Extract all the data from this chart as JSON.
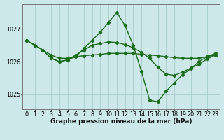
{
  "xlabel": "Graphe pression niveau de la mer (hPa)",
  "background_color": "#cce8e8",
  "grid_color": "#aacccc",
  "line_color": "#1a6b1a",
  "hours": [
    0,
    1,
    2,
    3,
    4,
    5,
    6,
    7,
    8,
    9,
    10,
    11,
    12,
    13,
    14,
    15,
    16,
    17,
    18,
    19,
    20,
    21,
    22,
    23
  ],
  "series1": [
    1026.65,
    1026.5,
    1026.35,
    1026.2,
    1026.1,
    1026.1,
    1026.15,
    1026.18,
    1026.2,
    1026.22,
    1026.25,
    1026.25,
    1026.25,
    1026.25,
    1026.22,
    1026.2,
    1026.18,
    1026.15,
    1026.12,
    1026.1,
    1026.1,
    1026.1,
    1026.15,
    1026.2
  ],
  "series2": [
    1026.65,
    1026.5,
    1026.35,
    1026.1,
    1026.0,
    1026.05,
    1026.15,
    1026.4,
    1026.65,
    1026.9,
    1027.2,
    1027.5,
    1027.1,
    1026.5,
    1025.7,
    1024.82,
    1024.78,
    1025.1,
    1025.35,
    1025.6,
    1025.78,
    1026.0,
    1026.15,
    1026.25
  ],
  "series3": [
    1026.65,
    1026.5,
    1026.35,
    1026.1,
    1026.0,
    1026.05,
    1026.2,
    1026.35,
    1026.5,
    1026.55,
    1026.6,
    1026.58,
    1026.52,
    1026.42,
    1026.28,
    1026.1,
    1025.82,
    1025.62,
    1025.58,
    1025.68,
    1025.8,
    1025.92,
    1026.08,
    1026.2
  ],
  "ylim": [
    1024.55,
    1027.75
  ],
  "yticks": [
    1025,
    1026,
    1027
  ],
  "xticks": [
    0,
    1,
    2,
    3,
    4,
    5,
    6,
    7,
    8,
    9,
    10,
    11,
    12,
    13,
    14,
    15,
    16,
    17,
    18,
    19,
    20,
    21,
    22,
    23
  ],
  "label_fontsize": 6.5,
  "tick_fontsize": 5.8,
  "line_width": 1.0,
  "marker": "D",
  "marker_size": 2.2
}
